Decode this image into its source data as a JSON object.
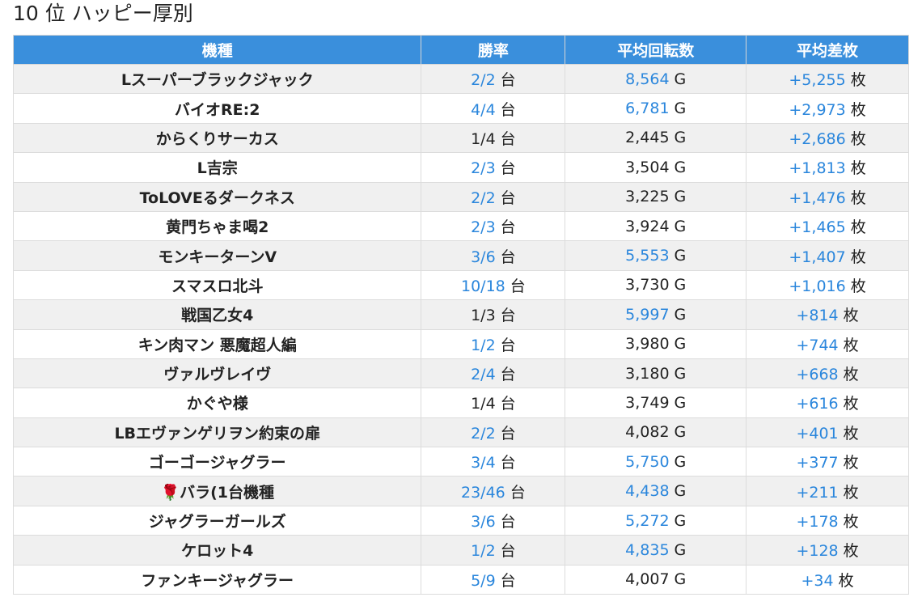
{
  "title": "10 位 ハッピー厚別",
  "table": {
    "headers": [
      "機種",
      "勝率",
      "平均回転数",
      "平均差枚"
    ],
    "units": [
      "台",
      "G",
      "枚"
    ],
    "highlight_color": "#2a86dc",
    "rows": [
      {
        "model": "Lスーパーブラックジャック",
        "cells": [
          {
            "text": "2/2",
            "blue": true
          },
          {
            "text": "8,564",
            "blue": true
          },
          {
            "text": "+5,255",
            "blue": true
          }
        ]
      },
      {
        "model": "バイオRE:2",
        "cells": [
          {
            "text": "4/4",
            "blue": true
          },
          {
            "text": "6,781",
            "blue": true
          },
          {
            "text": "+2,973",
            "blue": true
          }
        ]
      },
      {
        "model": "からくりサーカス",
        "cells": [
          {
            "text": "1/4",
            "blue": false
          },
          {
            "text": "2,445",
            "blue": false
          },
          {
            "text": "+2,686",
            "blue": true
          }
        ]
      },
      {
        "model": "L吉宗",
        "cells": [
          {
            "text": "2/3",
            "blue": true
          },
          {
            "text": "3,504",
            "blue": false
          },
          {
            "text": "+1,813",
            "blue": true
          }
        ]
      },
      {
        "model": "ToLOVEるダークネス",
        "cells": [
          {
            "text": "2/2",
            "blue": true
          },
          {
            "text": "3,225",
            "blue": false
          },
          {
            "text": "+1,476",
            "blue": true
          }
        ]
      },
      {
        "model": "黄門ちゃま喝2",
        "cells": [
          {
            "text": "2/3",
            "blue": true
          },
          {
            "text": "3,924",
            "blue": false
          },
          {
            "text": "+1,465",
            "blue": true
          }
        ]
      },
      {
        "model": "モンキーターンV",
        "cells": [
          {
            "text": "3/6",
            "blue": true
          },
          {
            "text": "5,553",
            "blue": true
          },
          {
            "text": "+1,407",
            "blue": true
          }
        ]
      },
      {
        "model": "スマスロ北斗",
        "cells": [
          {
            "text": "10/18",
            "blue": true
          },
          {
            "text": "3,730",
            "blue": false
          },
          {
            "text": "+1,016",
            "blue": true
          }
        ]
      },
      {
        "model": "戦国乙女4",
        "cells": [
          {
            "text": "1/3",
            "blue": false
          },
          {
            "text": "5,997",
            "blue": true
          },
          {
            "text": "+814",
            "blue": true
          }
        ]
      },
      {
        "model": "キン肉マン 悪魔超人編",
        "cells": [
          {
            "text": "1/2",
            "blue": true
          },
          {
            "text": "3,980",
            "blue": false
          },
          {
            "text": "+744",
            "blue": true
          }
        ]
      },
      {
        "model": "ヴァルヴレイヴ",
        "cells": [
          {
            "text": "2/4",
            "blue": true
          },
          {
            "text": "3,180",
            "blue": false
          },
          {
            "text": "+668",
            "blue": true
          }
        ]
      },
      {
        "model": "かぐや様",
        "cells": [
          {
            "text": "1/4",
            "blue": false
          },
          {
            "text": "3,749",
            "blue": false
          },
          {
            "text": "+616",
            "blue": true
          }
        ]
      },
      {
        "model": "LBエヴァンゲリヲン約束の扉",
        "cells": [
          {
            "text": "2/2",
            "blue": true
          },
          {
            "text": "4,082",
            "blue": false
          },
          {
            "text": "+401",
            "blue": true
          }
        ]
      },
      {
        "model": "ゴーゴージャグラー",
        "cells": [
          {
            "text": "3/4",
            "blue": true
          },
          {
            "text": "5,750",
            "blue": true
          },
          {
            "text": "+377",
            "blue": true
          }
        ]
      },
      {
        "model": "🌹バラ(1台機種",
        "cells": [
          {
            "text": "23/46",
            "blue": true
          },
          {
            "text": "4,438",
            "blue": true
          },
          {
            "text": "+211",
            "blue": true
          }
        ]
      },
      {
        "model": "ジャグラーガールズ",
        "cells": [
          {
            "text": "3/6",
            "blue": true
          },
          {
            "text": "5,272",
            "blue": true
          },
          {
            "text": "+178",
            "blue": true
          }
        ]
      },
      {
        "model": "ケロット4",
        "cells": [
          {
            "text": "1/2",
            "blue": true
          },
          {
            "text": "4,835",
            "blue": true
          },
          {
            "text": "+128",
            "blue": true
          }
        ]
      },
      {
        "model": "ファンキージャグラー",
        "cells": [
          {
            "text": "5/9",
            "blue": true
          },
          {
            "text": "4,007",
            "blue": false
          },
          {
            "text": "+34",
            "blue": true
          }
        ]
      }
    ]
  }
}
